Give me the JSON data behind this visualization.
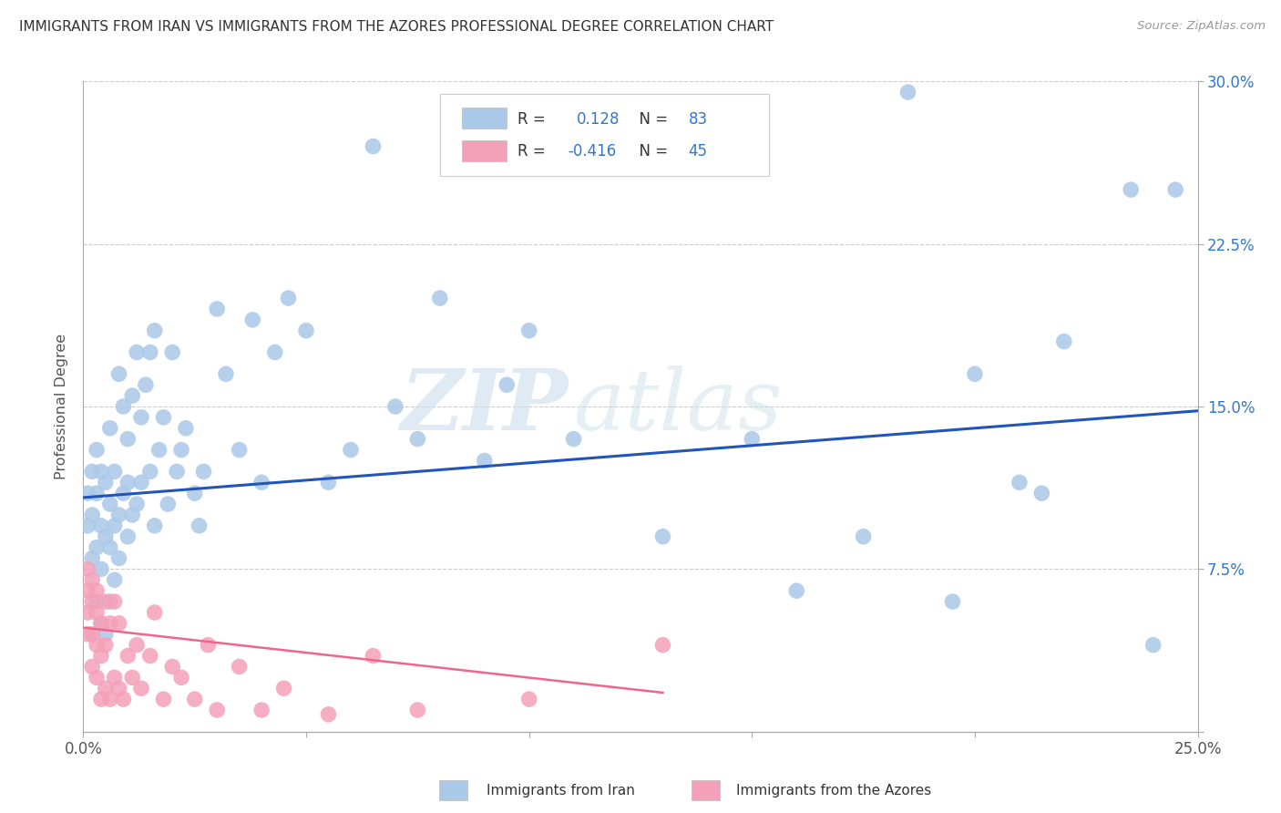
{
  "title": "IMMIGRANTS FROM IRAN VS IMMIGRANTS FROM THE AZORES PROFESSIONAL DEGREE CORRELATION CHART",
  "source": "Source: ZipAtlas.com",
  "ylabel": "Professional Degree",
  "watermark_zip": "ZIP",
  "watermark_atlas": "atlas",
  "iran_R": 0.128,
  "iran_N": 83,
  "azores_R": -0.416,
  "azores_N": 45,
  "iran_color": "#aac8e8",
  "azores_color": "#f4a0b8",
  "iran_line_color": "#2255bb",
  "azores_line_color": "#ee6688",
  "background_color": "#ffffff",
  "grid_color": "#cccccc",
  "xlim": [
    0.0,
    0.25
  ],
  "ylim": [
    0.0,
    0.3
  ],
  "legend_iran_text": "R =  0.128   N = 83",
  "legend_azores_text": "R = -0.416   N = 45",
  "iran_line_x0": 0.0,
  "iran_line_y0": 0.108,
  "iran_line_x1": 0.25,
  "iran_line_y1": 0.148,
  "azores_line_x0": 0.0,
  "azores_line_y0": 0.048,
  "azores_line_x1": 0.13,
  "azores_line_y1": 0.018,
  "iran_x": [
    0.001,
    0.001,
    0.002,
    0.002,
    0.002,
    0.003,
    0.003,
    0.003,
    0.003,
    0.004,
    0.004,
    0.004,
    0.004,
    0.005,
    0.005,
    0.005,
    0.006,
    0.006,
    0.006,
    0.006,
    0.007,
    0.007,
    0.007,
    0.008,
    0.008,
    0.008,
    0.009,
    0.009,
    0.01,
    0.01,
    0.01,
    0.011,
    0.011,
    0.012,
    0.012,
    0.013,
    0.013,
    0.014,
    0.015,
    0.015,
    0.016,
    0.016,
    0.017,
    0.018,
    0.019,
    0.02,
    0.021,
    0.022,
    0.023,
    0.025,
    0.026,
    0.027,
    0.03,
    0.032,
    0.035,
    0.038,
    0.04,
    0.043,
    0.046,
    0.05,
    0.055,
    0.06,
    0.065,
    0.07,
    0.075,
    0.08,
    0.09,
    0.095,
    0.1,
    0.11,
    0.13,
    0.15,
    0.16,
    0.175,
    0.185,
    0.195,
    0.2,
    0.21,
    0.215,
    0.22,
    0.235,
    0.24,
    0.245
  ],
  "iran_y": [
    0.095,
    0.11,
    0.08,
    0.1,
    0.12,
    0.06,
    0.085,
    0.11,
    0.13,
    0.05,
    0.075,
    0.095,
    0.12,
    0.045,
    0.09,
    0.115,
    0.06,
    0.085,
    0.105,
    0.14,
    0.07,
    0.095,
    0.12,
    0.08,
    0.1,
    0.165,
    0.11,
    0.15,
    0.09,
    0.115,
    0.135,
    0.1,
    0.155,
    0.105,
    0.175,
    0.115,
    0.145,
    0.16,
    0.12,
    0.175,
    0.095,
    0.185,
    0.13,
    0.145,
    0.105,
    0.175,
    0.12,
    0.13,
    0.14,
    0.11,
    0.095,
    0.12,
    0.195,
    0.165,
    0.13,
    0.19,
    0.115,
    0.175,
    0.2,
    0.185,
    0.115,
    0.13,
    0.27,
    0.15,
    0.135,
    0.2,
    0.125,
    0.16,
    0.185,
    0.135,
    0.09,
    0.135,
    0.065,
    0.09,
    0.295,
    0.06,
    0.165,
    0.115,
    0.11,
    0.18,
    0.25,
    0.04,
    0.25
  ],
  "azores_x": [
    0.001,
    0.001,
    0.001,
    0.001,
    0.002,
    0.002,
    0.002,
    0.002,
    0.003,
    0.003,
    0.003,
    0.003,
    0.004,
    0.004,
    0.004,
    0.005,
    0.005,
    0.005,
    0.006,
    0.006,
    0.007,
    0.007,
    0.008,
    0.008,
    0.009,
    0.01,
    0.011,
    0.012,
    0.013,
    0.015,
    0.016,
    0.018,
    0.02,
    0.022,
    0.025,
    0.028,
    0.03,
    0.035,
    0.04,
    0.045,
    0.055,
    0.065,
    0.075,
    0.1,
    0.13
  ],
  "azores_y": [
    0.045,
    0.055,
    0.065,
    0.075,
    0.03,
    0.045,
    0.06,
    0.07,
    0.025,
    0.04,
    0.055,
    0.065,
    0.015,
    0.035,
    0.05,
    0.02,
    0.04,
    0.06,
    0.015,
    0.05,
    0.025,
    0.06,
    0.02,
    0.05,
    0.015,
    0.035,
    0.025,
    0.04,
    0.02,
    0.035,
    0.055,
    0.015,
    0.03,
    0.025,
    0.015,
    0.04,
    0.01,
    0.03,
    0.01,
    0.02,
    0.008,
    0.035,
    0.01,
    0.015,
    0.04
  ]
}
